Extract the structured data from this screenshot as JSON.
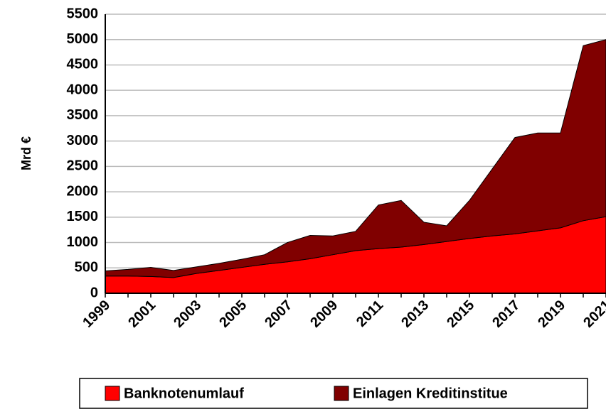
{
  "chart_data": {
    "type": "stacked_area",
    "y_label": "Mrd €",
    "categories": [
      "1999",
      null,
      "2001",
      null,
      "2003",
      null,
      "2005",
      null,
      "2007",
      null,
      "2009",
      null,
      "2011",
      null,
      "2013",
      null,
      "2015",
      null,
      "2017",
      null,
      "2019",
      null,
      "2021"
    ],
    "series": [
      {
        "name": "Banknotenumlauf",
        "color": "#ff0000",
        "values": [
          340,
          340,
          330,
          310,
          390,
          450,
          510,
          570,
          620,
          680,
          760,
          840,
          880,
          910,
          960,
          1020,
          1080,
          1130,
          1170,
          1230,
          1290,
          1430,
          1510
        ]
      },
      {
        "name": "Einlagen Kreditinstitue",
        "color": "#800000",
        "values": [
          100,
          130,
          180,
          140,
          130,
          140,
          160,
          190,
          380,
          460,
          370,
          380,
          860,
          920,
          440,
          310,
          750,
          1320,
          1900,
          1930,
          1870,
          3450,
          3490
        ]
      }
    ],
    "ylim": [
      0,
      5500
    ],
    "yticks": [
      0,
      500,
      1000,
      1500,
      2000,
      2500,
      3000,
      3500,
      4000,
      4500,
      5000,
      5500
    ],
    "grid": true,
    "legend": "bottom"
  }
}
